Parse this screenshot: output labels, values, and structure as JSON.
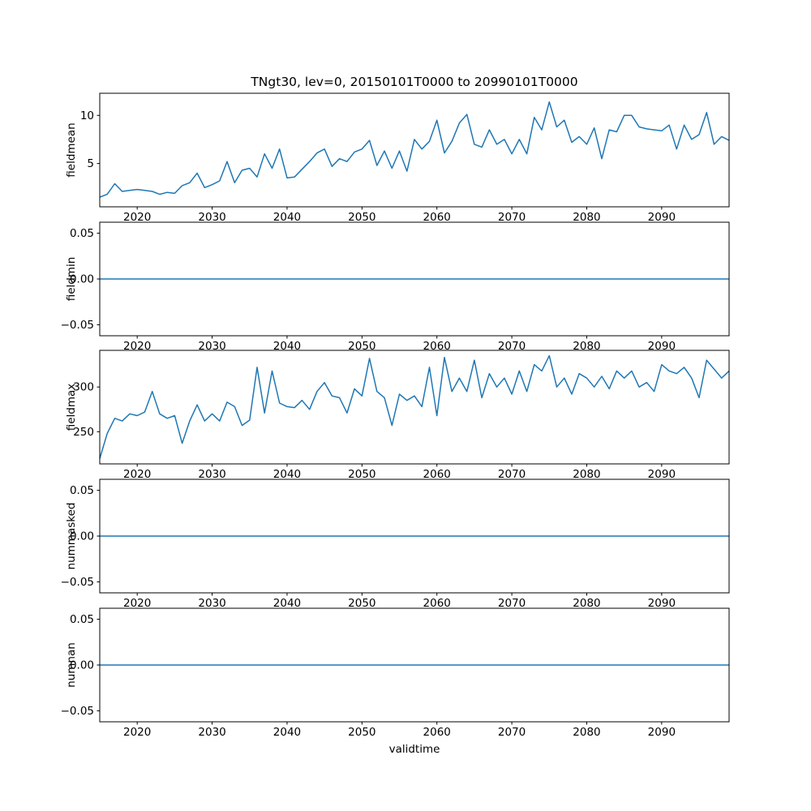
{
  "title": "TNgt30, lev=0, 20150101T0000 to 20990101T0000",
  "x_axis": {
    "label": "validtime",
    "start": 2015,
    "end": 2099,
    "ticks": [
      2020,
      2030,
      2040,
      2050,
      2060,
      2070,
      2080,
      2090
    ]
  },
  "colors": {
    "line": "#1f77b4",
    "axes": "#000000",
    "background": "#ffffff"
  },
  "chart_data": [
    {
      "type": "line",
      "ylabel": "fieldmean",
      "ylim": [
        0.5,
        12.3
      ],
      "yticks": [
        5,
        10
      ],
      "ytick_labels": [
        "5",
        "10"
      ],
      "values": [
        1.5,
        1.8,
        2.9,
        2.1,
        2.2,
        2.3,
        2.2,
        2.1,
        1.8,
        2.0,
        1.9,
        2.7,
        3.0,
        4.0,
        2.5,
        2.8,
        3.2,
        5.2,
        3.0,
        4.3,
        4.5,
        3.6,
        6.0,
        4.5,
        6.5,
        3.5,
        3.6,
        4.4,
        5.2,
        6.1,
        6.5,
        4.7,
        5.5,
        5.2,
        6.2,
        6.5,
        7.4,
        4.8,
        6.3,
        4.5,
        6.3,
        4.2,
        7.5,
        6.5,
        7.3,
        9.5,
        6.1,
        7.3,
        9.2,
        10.1,
        7.0,
        6.7,
        8.5,
        7.0,
        7.5,
        6.0,
        7.5,
        6.0,
        9.8,
        8.5,
        11.4,
        8.8,
        9.5,
        7.2,
        7.8,
        7.0,
        8.7,
        5.5,
        8.5,
        8.3,
        10.0,
        10.0,
        8.8,
        8.6,
        8.5,
        8.4,
        9.0,
        6.5,
        9.0,
        7.5,
        8.0,
        10.3,
        7.0,
        7.8,
        7.4
      ]
    },
    {
      "type": "line",
      "ylabel": "fieldmin",
      "ylim": [
        -0.062,
        0.062
      ],
      "yticks": [
        -0.05,
        0.0,
        0.05
      ],
      "ytick_labels": [
        "−0.05",
        "0.00",
        "0.05"
      ],
      "constant_value": 0.0
    },
    {
      "type": "line",
      "ylabel": "fieldmax",
      "ylim": [
        214,
        341
      ],
      "yticks": [
        250,
        300
      ],
      "ytick_labels": [
        "250",
        "300"
      ],
      "values": [
        220,
        248,
        265,
        262,
        270,
        268,
        272,
        295,
        270,
        265,
        268,
        237,
        262,
        280,
        262,
        270,
        262,
        283,
        278,
        257,
        263,
        322,
        271,
        318,
        282,
        278,
        277,
        285,
        275,
        295,
        305,
        290,
        288,
        271,
        298,
        290,
        332,
        295,
        288,
        257,
        292,
        285,
        290,
        278,
        322,
        268,
        333,
        295,
        310,
        295,
        330,
        288,
        315,
        300,
        310,
        292,
        318,
        295,
        325,
        318,
        335,
        300,
        310,
        292,
        315,
        310,
        300,
        312,
        298,
        318,
        310,
        318,
        300,
        305,
        295,
        325,
        318,
        315,
        322,
        310,
        288,
        330,
        320,
        310,
        318
      ]
    },
    {
      "type": "line",
      "ylabel": "nummasked",
      "ylim": [
        -0.062,
        0.062
      ],
      "yticks": [
        -0.05,
        0.0,
        0.05
      ],
      "ytick_labels": [
        "−0.05",
        "0.00",
        "0.05"
      ],
      "constant_value": 0.0
    },
    {
      "type": "line",
      "ylabel": "numnan",
      "ylim": [
        -0.062,
        0.062
      ],
      "yticks": [
        -0.05,
        0.0,
        0.05
      ],
      "ytick_labels": [
        "−0.05",
        "0.00",
        "0.05"
      ],
      "constant_value": 0.0
    }
  ]
}
